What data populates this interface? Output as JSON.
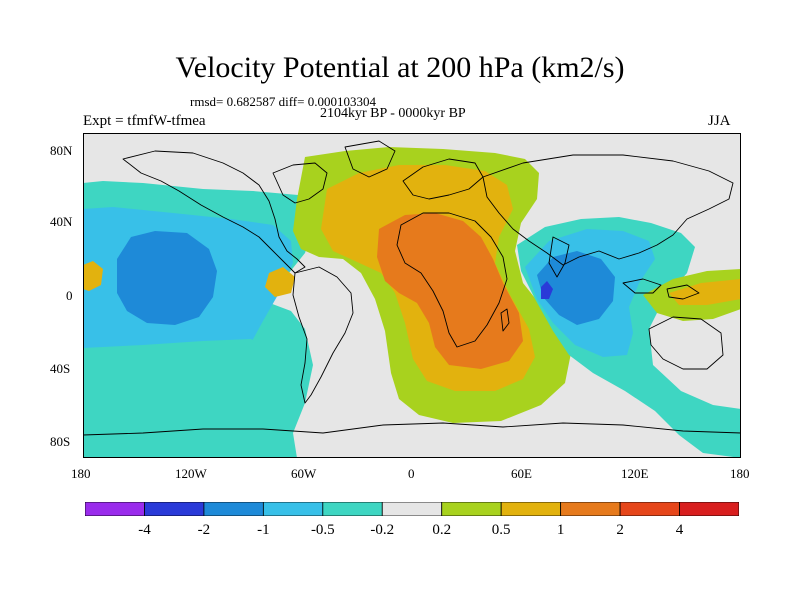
{
  "title": "Velocity Potential at 200 hPa (km2/s)",
  "stats": "rmsd= 0.682587 diff= 0.000103304",
  "experiment": "Expt = tfmfW-tfmea",
  "period": "2104kyr BP - 0000kyr BP",
  "season": "JJA",
  "lat_ticks": [
    "80N",
    "40N",
    "0",
    "40S",
    "80S"
  ],
  "lon_ticks": [
    "180",
    "120W",
    "60W",
    "0",
    "60E",
    "120E",
    "180"
  ],
  "colorbar": {
    "labels": [
      "-4",
      "-2",
      "-1",
      "-0.5",
      "-0.2",
      "0.2",
      "0.5",
      "1",
      "2",
      "4"
    ],
    "colors": [
      "#9a2cec",
      "#2a3ad8",
      "#1e8ad8",
      "#38c0e8",
      "#3ed6c2",
      "#e6e6e6",
      "#a8d21e",
      "#e2b20e",
      "#e67a1c",
      "#e6461a",
      "#d81e1e"
    ]
  },
  "colors": {
    "neutral": "#e6e6e6",
    "land_outline": "#000000"
  }
}
